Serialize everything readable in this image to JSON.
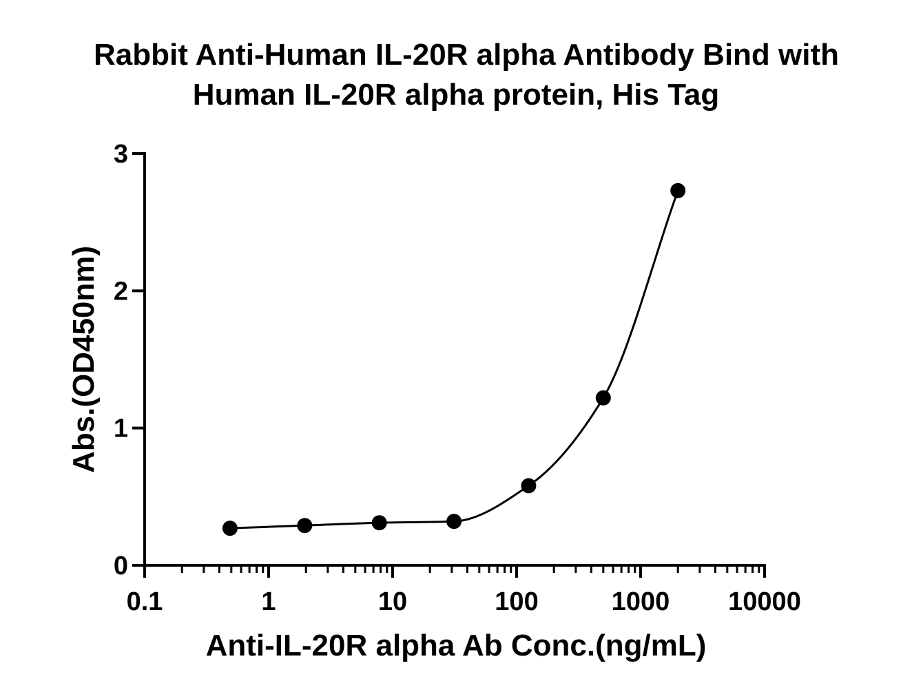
{
  "chart_data": {
    "type": "scatter",
    "title_lines": [
      "Rabbit Anti-Human IL-20R alpha Antibody Bind with",
      "Human IL-20R alpha protein, His Tag"
    ],
    "xlabel": "Anti-IL-20R alpha Ab Conc.(ng/mL)",
    "ylabel": "Abs.(OD450nm)",
    "xscale": "log",
    "xlim": [
      0.1,
      10000
    ],
    "ylim": [
      0,
      3
    ],
    "x_ticks": [
      "0.1",
      "1",
      "10",
      "100",
      "1000",
      "10000"
    ],
    "y_ticks": [
      "0",
      "1",
      "2",
      "3"
    ],
    "grid": false,
    "legend": "none",
    "series": [
      {
        "x": [
          0.488,
          1.953,
          7.813,
          31.25,
          125,
          500,
          2000
        ],
        "y": [
          0.27,
          0.29,
          0.31,
          0.32,
          0.58,
          1.22,
          2.73
        ],
        "fit": "4PL curve",
        "color": "#000000"
      }
    ]
  }
}
